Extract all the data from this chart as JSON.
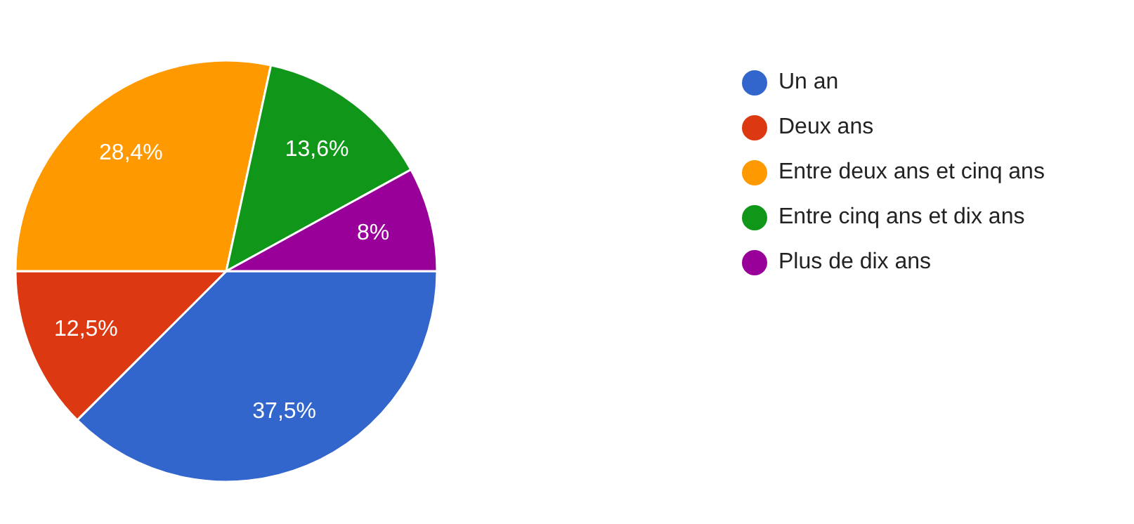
{
  "chart_data": {
    "type": "pie",
    "categories": [
      "Un an",
      "Deux ans",
      "Entre deux ans et cinq ans",
      "Entre cinq ans et dix ans",
      "Plus de dix ans"
    ],
    "values": [
      37.5,
      12.5,
      28.4,
      13.6,
      8
    ],
    "value_labels": [
      "37,5%",
      "12,5%",
      "28,4%",
      "13,6%",
      "8%"
    ],
    "colors": [
      "#3366cc",
      "#dc3912",
      "#ff9900",
      "#109618",
      "#990099"
    ],
    "legend": "right"
  }
}
